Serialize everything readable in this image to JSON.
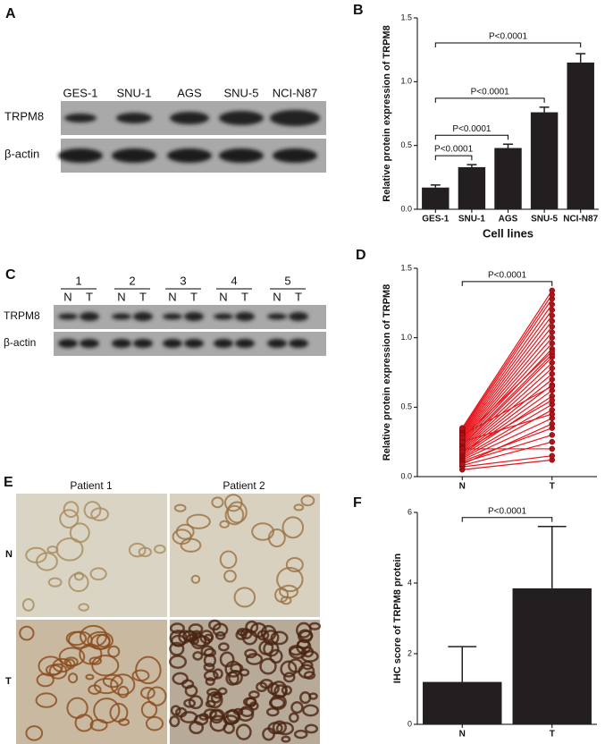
{
  "panels": {
    "A": {
      "label": "A",
      "lanes": [
        "GES-1",
        "SNU-1",
        "AGS",
        "SNU-5",
        "NCI-N87"
      ],
      "rows": [
        "TRPM8",
        "β-actin"
      ]
    },
    "C": {
      "label": "C",
      "groups": [
        "1",
        "2",
        "3",
        "4",
        "5"
      ],
      "lanes": [
        "N",
        "T"
      ],
      "rows": [
        "TRPM8",
        "β-actin"
      ]
    },
    "E": {
      "label": "E",
      "columns": [
        "Patient 1",
        "Patient 2"
      ],
      "rows": [
        "N",
        "T"
      ]
    }
  },
  "chart_data": [
    {
      "type": "bar",
      "panel": "B",
      "ylabel": "Relative protein expression of TRPM8",
      "xlabel": "Cell lines",
      "categories": [
        "GES-1",
        "SNU-1",
        "AGS",
        "SNU-5",
        "NCI-N87"
      ],
      "values": [
        0.17,
        0.33,
        0.48,
        0.76,
        1.15
      ],
      "errors": [
        0.02,
        0.02,
        0.03,
        0.04,
        0.07
      ],
      "color": "#231f20",
      "ylim": [
        0,
        1.5
      ],
      "yticks": [
        {
          "value": 0,
          "label": "0.0"
        },
        0.5,
        {
          "value": 1,
          "label": "1.0"
        },
        1.5
      ],
      "annotations": [
        "P<0.0001",
        "P<0.0001",
        "P<0.0001",
        "P<0.0001"
      ]
    },
    {
      "type": "line",
      "panel": "D",
      "ylabel": "Relative protein expression of TRPM8",
      "categories": [
        "N",
        "T"
      ],
      "color": "#e8141b",
      "ylim": [
        0,
        1.5
      ],
      "yticks": [
        {
          "value": 0,
          "label": "0.0"
        },
        0.5,
        {
          "value": 1,
          "label": "1.0"
        },
        1.5
      ],
      "annotations": [
        "P<0.0001"
      ],
      "series": [
        {
          "values": [
            0.05,
            0.12
          ]
        },
        {
          "values": [
            0.07,
            0.15
          ]
        },
        {
          "values": [
            0.08,
            0.25
          ]
        },
        {
          "values": [
            0.1,
            0.3
          ]
        },
        {
          "values": [
            0.11,
            0.35
          ]
        },
        {
          "values": [
            0.12,
            0.42
          ]
        },
        {
          "values": [
            0.13,
            0.48
          ]
        },
        {
          "values": [
            0.14,
            0.52
          ]
        },
        {
          "values": [
            0.15,
            0.58
          ]
        },
        {
          "values": [
            0.16,
            0.62
          ]
        },
        {
          "values": [
            0.17,
            0.66
          ]
        },
        {
          "values": [
            0.18,
            0.7
          ]
        },
        {
          "values": [
            0.19,
            0.74
          ]
        },
        {
          "values": [
            0.2,
            0.78
          ]
        },
        {
          "values": [
            0.21,
            0.82
          ]
        },
        {
          "values": [
            0.22,
            0.86
          ]
        },
        {
          "values": [
            0.23,
            0.88
          ]
        },
        {
          "values": [
            0.24,
            0.92
          ]
        },
        {
          "values": [
            0.25,
            0.96
          ]
        },
        {
          "values": [
            0.26,
            1.0
          ]
        },
        {
          "values": [
            0.27,
            1.04
          ]
        },
        {
          "values": [
            0.28,
            1.08
          ]
        },
        {
          "values": [
            0.29,
            1.12
          ]
        },
        {
          "values": [
            0.3,
            1.16
          ]
        },
        {
          "values": [
            0.31,
            1.2
          ]
        },
        {
          "values": [
            0.32,
            1.24
          ]
        },
        {
          "values": [
            0.33,
            1.28
          ]
        },
        {
          "values": [
            0.34,
            1.31
          ]
        },
        {
          "values": [
            0.35,
            1.34
          ]
        },
        {
          "values": [
            0.2,
            0.2
          ]
        },
        {
          "values": [
            0.25,
            0.45
          ]
        },
        {
          "values": [
            0.3,
            0.65
          ]
        },
        {
          "values": [
            0.09,
            0.38
          ]
        },
        {
          "values": [
            0.18,
            0.55
          ]
        },
        {
          "values": [
            0.28,
            0.9
          ]
        }
      ]
    },
    {
      "type": "bar",
      "panel": "F",
      "ylabel": "IHC score of TRPM8 protein",
      "categories": [
        "N",
        "T"
      ],
      "values": [
        1.2,
        3.85
      ],
      "errors": [
        1.0,
        1.75
      ],
      "color": "#231f20",
      "ylim": [
        0,
        6
      ],
      "yticks": [
        0,
        2,
        4,
        6
      ],
      "annotations": [
        "P<0.0001"
      ]
    }
  ]
}
